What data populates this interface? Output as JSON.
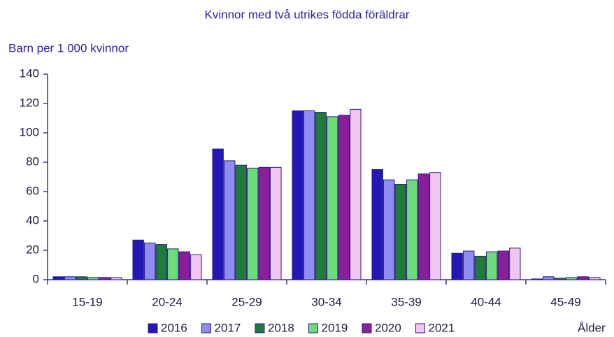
{
  "chart_data": {
    "type": "bar",
    "title": "Kvinnor med två utrikes födda föräldrar",
    "y_label": "Barn per 1 000 kvinnor",
    "x_label": "Ålder",
    "categories": [
      "15-19",
      "20-24",
      "25-29",
      "30-34",
      "35-39",
      "40-44",
      "45-49"
    ],
    "series": [
      {
        "name": "2016",
        "color": "#2516b8",
        "values": [
          2,
          27,
          89,
          115,
          75,
          18,
          0.5
        ]
      },
      {
        "name": "2017",
        "color": "#8f8cf2",
        "values": [
          2,
          25,
          81,
          115,
          68,
          19.5,
          2
        ]
      },
      {
        "name": "2018",
        "color": "#1f7b3c",
        "values": [
          2,
          24,
          78,
          114,
          65,
          16,
          1
        ]
      },
      {
        "name": "2019",
        "color": "#6ddc78",
        "values": [
          1.5,
          21,
          76,
          111,
          68,
          19,
          1.5
        ]
      },
      {
        "name": "2020",
        "color": "#8b1f9b",
        "values": [
          1.5,
          19,
          76.5,
          112,
          72,
          19.5,
          2
        ]
      },
      {
        "name": "2021",
        "color": "#f2c4ef",
        "values": [
          1.5,
          17,
          76.5,
          116,
          73,
          21.5,
          1.5
        ]
      }
    ],
    "ylim": [
      0,
      140
    ],
    "yticks": [
      0,
      20,
      40,
      60,
      80,
      100,
      120,
      140
    ],
    "grid": false
  }
}
